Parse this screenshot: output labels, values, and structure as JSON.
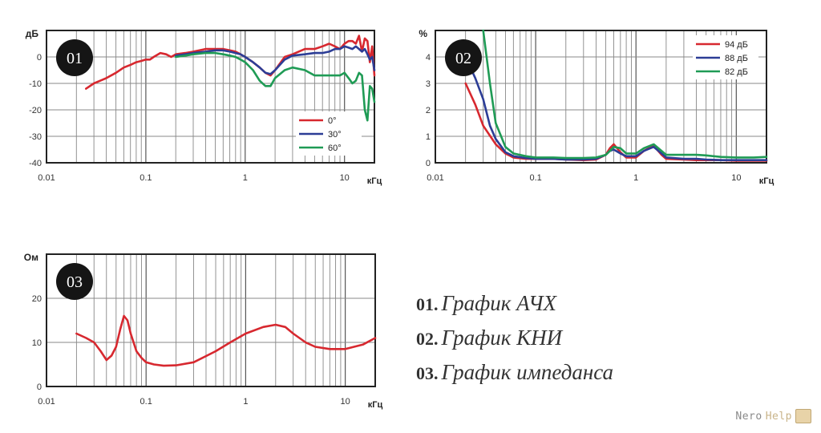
{
  "chart_data": [
    {
      "type": "line",
      "badge": "01",
      "ylabel": "дБ",
      "xlabel": "кГц",
      "x_scale": "log",
      "xlim": [
        0.01,
        20
      ],
      "ylim": [
        -40,
        10
      ],
      "x_ticks": [
        "0.01",
        "0.1",
        "1",
        "10"
      ],
      "y_ticks": [
        "0",
        "-10",
        "-20",
        "-30",
        "-40"
      ],
      "grid": true,
      "legend_position": "bottom-right",
      "series": [
        {
          "name": "0°",
          "color": "#d7282f",
          "x": [
            0.025,
            0.03,
            0.04,
            0.05,
            0.06,
            0.07,
            0.08,
            0.09,
            0.1,
            0.11,
            0.12,
            0.14,
            0.16,
            0.18,
            0.2,
            0.25,
            0.3,
            0.4,
            0.5,
            0.6,
            0.7,
            0.8,
            0.9,
            1,
            1.2,
            1.4,
            1.6,
            1.8,
            2,
            2.5,
            3,
            4,
            5,
            6,
            7,
            8,
            9,
            10,
            11,
            12,
            13,
            14,
            15,
            16,
            17,
            18,
            19,
            20
          ],
          "y": [
            -12,
            -10,
            -8,
            -6,
            -4,
            -3,
            -2,
            -1.5,
            -1,
            -1,
            0,
            1.5,
            1,
            0,
            1,
            1.5,
            2,
            3,
            3,
            3,
            2.5,
            2,
            1,
            0,
            -2,
            -4,
            -6,
            -7,
            -5,
            0,
            1,
            3,
            3,
            4,
            5,
            4,
            3,
            5,
            6,
            6,
            5,
            8,
            2,
            7,
            6,
            -2,
            4,
            -7
          ]
        },
        {
          "name": "30°",
          "color": "#2c3d96",
          "x": [
            0.2,
            0.25,
            0.3,
            0.4,
            0.5,
            0.6,
            0.7,
            0.8,
            0.9,
            1,
            1.2,
            1.4,
            1.6,
            1.8,
            2,
            2.5,
            3,
            4,
            5,
            6,
            7,
            8,
            9,
            10,
            11,
            12,
            13,
            14,
            15,
            16,
            17,
            18,
            19,
            20
          ],
          "y": [
            0.5,
            1,
            1.5,
            2,
            2.5,
            2.5,
            2,
            1.5,
            1,
            0,
            -2,
            -4,
            -6,
            -6.5,
            -5,
            -1,
            0.5,
            1,
            1.5,
            1.5,
            2,
            3,
            3,
            4,
            3.5,
            3,
            4,
            3,
            2,
            3,
            1,
            -1,
            0,
            -5
          ]
        },
        {
          "name": "60°",
          "color": "#1f9b55",
          "x": [
            0.2,
            0.25,
            0.3,
            0.4,
            0.5,
            0.6,
            0.7,
            0.8,
            0.9,
            1,
            1.2,
            1.4,
            1.6,
            1.8,
            2,
            2.5,
            3,
            4,
            5,
            6,
            7,
            8,
            9,
            10,
            11,
            12,
            13,
            14,
            15,
            16,
            17,
            18,
            19,
            20
          ],
          "y": [
            0,
            0.5,
            1,
            1.5,
            1.5,
            1,
            0.5,
            0,
            -1,
            -2,
            -5,
            -9,
            -11,
            -11,
            -8,
            -5,
            -4,
            -5,
            -7,
            -7,
            -7,
            -7,
            -7,
            -6,
            -8,
            -10,
            -9,
            -6,
            -7,
            -20,
            -24,
            -11,
            -12,
            -17
          ]
        }
      ]
    },
    {
      "type": "line",
      "badge": "02",
      "ylabel": "%",
      "xlabel": "кГц",
      "x_scale": "log",
      "xlim": [
        0.01,
        20
      ],
      "ylim": [
        0,
        5
      ],
      "x_ticks": [
        "0.01",
        "0.1",
        "1",
        "10"
      ],
      "y_ticks": [
        "0",
        "1",
        "2",
        "3",
        "4"
      ],
      "grid": true,
      "legend_position": "top-right",
      "series": [
        {
          "name": "94 дБ",
          "color": "#d7282f",
          "x": [
            0.02,
            0.025,
            0.03,
            0.04,
            0.05,
            0.06,
            0.08,
            0.1,
            0.15,
            0.2,
            0.3,
            0.4,
            0.5,
            0.55,
            0.6,
            0.7,
            0.8,
            1,
            1.2,
            1.5,
            1.8,
            2,
            3,
            4,
            5,
            7,
            10,
            15,
            20
          ],
          "y": [
            3,
            2.2,
            1.4,
            0.7,
            0.35,
            0.2,
            0.15,
            0.15,
            0.15,
            0.12,
            0.1,
            0.12,
            0.3,
            0.55,
            0.7,
            0.4,
            0.2,
            0.2,
            0.45,
            0.65,
            0.3,
            0.15,
            0.12,
            0.1,
            0.1,
            0.1,
            0.08,
            0.08,
            0.08
          ]
        },
        {
          "name": "88 дБ",
          "color": "#2c3d96",
          "x": [
            0.02,
            0.025,
            0.03,
            0.035,
            0.04,
            0.05,
            0.06,
            0.08,
            0.1,
            0.15,
            0.2,
            0.3,
            0.4,
            0.5,
            0.55,
            0.6,
            0.7,
            0.8,
            1,
            1.2,
            1.5,
            1.8,
            2,
            3,
            4,
            5,
            7,
            10,
            15,
            20
          ],
          "y": [
            4,
            3.2,
            2.4,
            1.4,
            0.9,
            0.4,
            0.25,
            0.18,
            0.15,
            0.15,
            0.12,
            0.12,
            0.15,
            0.3,
            0.45,
            0.5,
            0.35,
            0.25,
            0.25,
            0.45,
            0.6,
            0.35,
            0.2,
            0.15,
            0.15,
            0.12,
            0.1,
            0.1,
            0.1,
            0.1
          ]
        },
        {
          "name": "82 дБ",
          "color": "#1f9b55",
          "x": [
            0.03,
            0.035,
            0.04,
            0.05,
            0.06,
            0.08,
            0.1,
            0.15,
            0.2,
            0.3,
            0.4,
            0.5,
            0.55,
            0.6,
            0.7,
            0.8,
            1,
            1.2,
            1.5,
            1.8,
            2,
            3,
            4,
            5,
            7,
            10,
            15,
            20
          ],
          "y": [
            5,
            3,
            1.5,
            0.6,
            0.35,
            0.25,
            0.2,
            0.2,
            0.18,
            0.18,
            0.2,
            0.3,
            0.45,
            0.6,
            0.55,
            0.35,
            0.35,
            0.55,
            0.7,
            0.45,
            0.3,
            0.3,
            0.3,
            0.28,
            0.22,
            0.2,
            0.2,
            0.22
          ]
        }
      ]
    },
    {
      "type": "line",
      "badge": "03",
      "ylabel": "Ом",
      "xlabel": "кГц",
      "x_scale": "log",
      "xlim": [
        0.01,
        20
      ],
      "ylim": [
        0,
        30
      ],
      "x_ticks": [
        "0.01",
        "0.1",
        "1",
        "10"
      ],
      "y_ticks": [
        "0",
        "10",
        "20"
      ],
      "grid": true,
      "series": [
        {
          "name": "",
          "color": "#d7282f",
          "x": [
            0.02,
            0.025,
            0.03,
            0.035,
            0.04,
            0.045,
            0.05,
            0.055,
            0.06,
            0.065,
            0.07,
            0.08,
            0.09,
            0.1,
            0.12,
            0.15,
            0.2,
            0.3,
            0.5,
            0.7,
            1,
            1.5,
            2,
            2.5,
            3,
            4,
            5,
            7,
            10,
            15,
            20
          ],
          "y": [
            12,
            11,
            10,
            8,
            6,
            7,
            9,
            13,
            16,
            15,
            12,
            8,
            6.5,
            5.5,
            5,
            4.7,
            4.8,
            5.5,
            8,
            10,
            12,
            13.5,
            14,
            13.5,
            12,
            10,
            9,
            8.5,
            8.5,
            9.5,
            11
          ]
        }
      ]
    }
  ],
  "legend": [
    {
      "num": "01.",
      "text": "График АЧХ"
    },
    {
      "num": "02.",
      "text": "График КНИ"
    },
    {
      "num": "03.",
      "text": "График импеданса"
    }
  ],
  "watermark": {
    "part1": "Nero",
    "part2": "Help"
  }
}
